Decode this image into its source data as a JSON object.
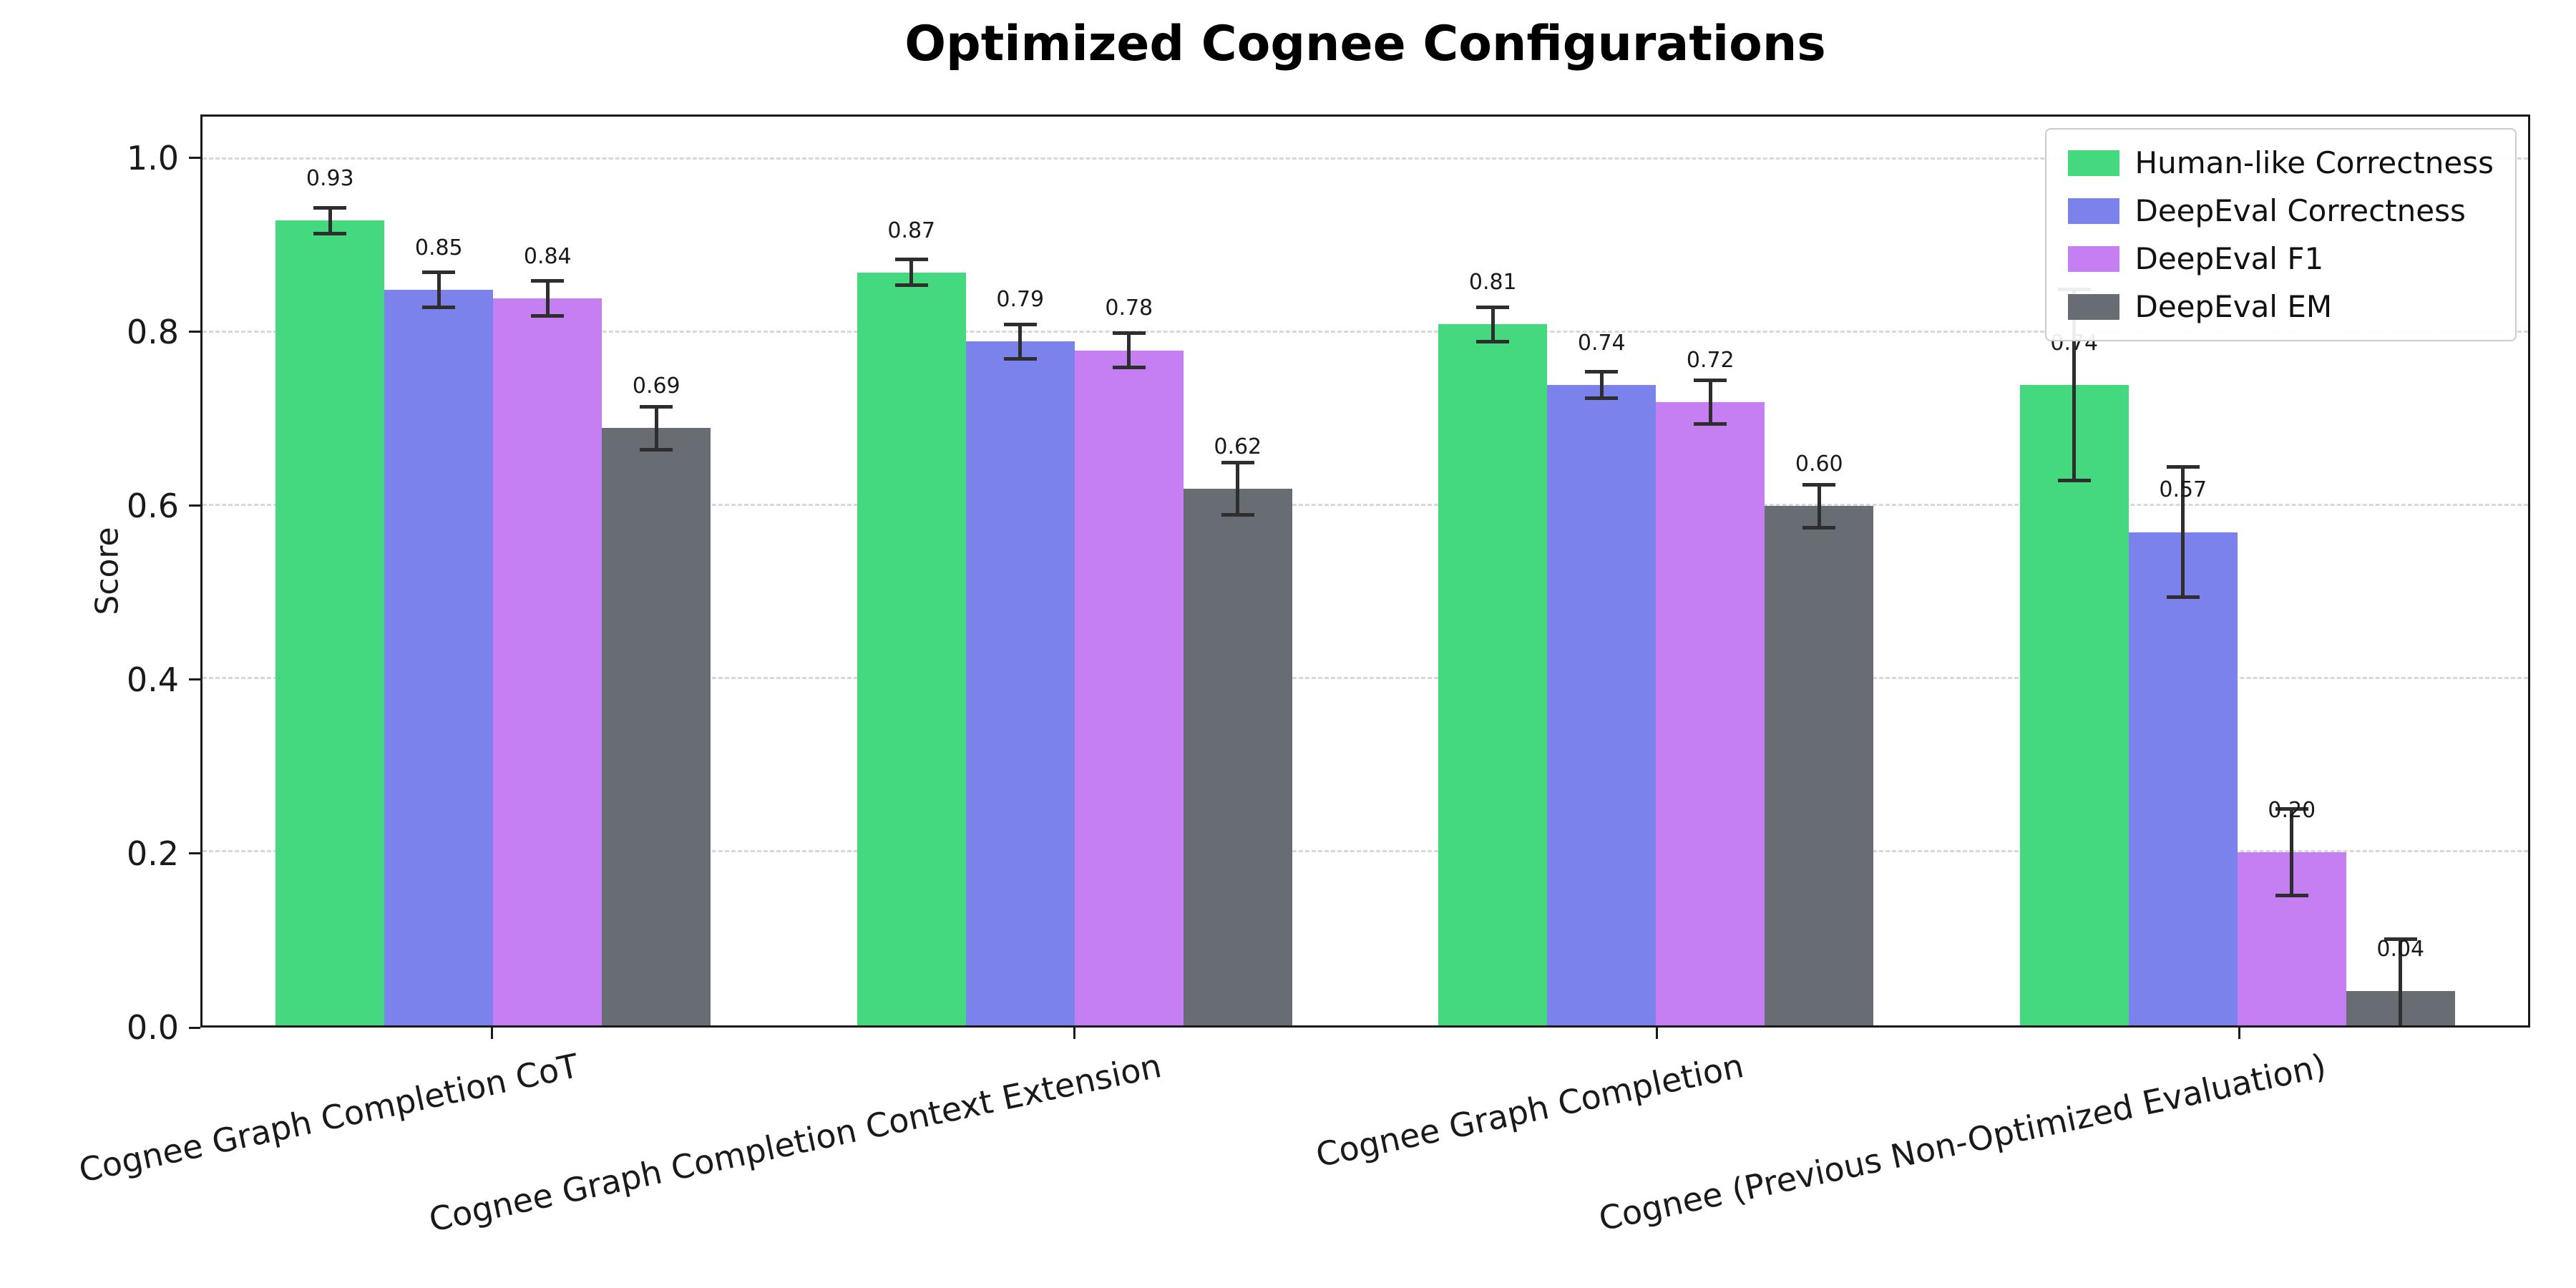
{
  "chart_data": {
    "type": "bar",
    "title": "Optimized Cognee Configurations",
    "xlabel": "",
    "ylabel": "Score",
    "ylim": [
      0,
      1.05
    ],
    "yticks": [
      0.0,
      0.2,
      0.4,
      0.6,
      0.8,
      1.0
    ],
    "grid": "horizontal-dashed",
    "legend_position": "upper right",
    "categories": [
      "Cognee Graph Completion CoT",
      "Cognee Graph Completion Context Extension",
      "Cognee Graph Completion",
      "Cognee (Previous Non-Optimized Evaluation)"
    ],
    "series": [
      {
        "name": "Human-like Correctness",
        "color": "#44d97f",
        "values": [
          0.93,
          0.87,
          0.81,
          0.74
        ],
        "errors": [
          0.015,
          0.015,
          0.02,
          0.11
        ]
      },
      {
        "name": "DeepEval Correctness",
        "color": "#7c82ec",
        "values": [
          0.85,
          0.79,
          0.74,
          0.57
        ],
        "errors": [
          0.02,
          0.02,
          0.015,
          0.075
        ]
      },
      {
        "name": "DeepEval F1",
        "color": "#c57ff2",
        "values": [
          0.84,
          0.78,
          0.72,
          0.2
        ],
        "errors": [
          0.02,
          0.02,
          0.025,
          0.05
        ]
      },
      {
        "name": "DeepEval EM",
        "color": "#686c73",
        "values": [
          0.69,
          0.62,
          0.6,
          0.04
        ],
        "errors": [
          0.025,
          0.03,
          0.025,
          0.06
        ]
      }
    ],
    "error_bar_color": "#2e2e2e",
    "value_label_precision": 2
  }
}
